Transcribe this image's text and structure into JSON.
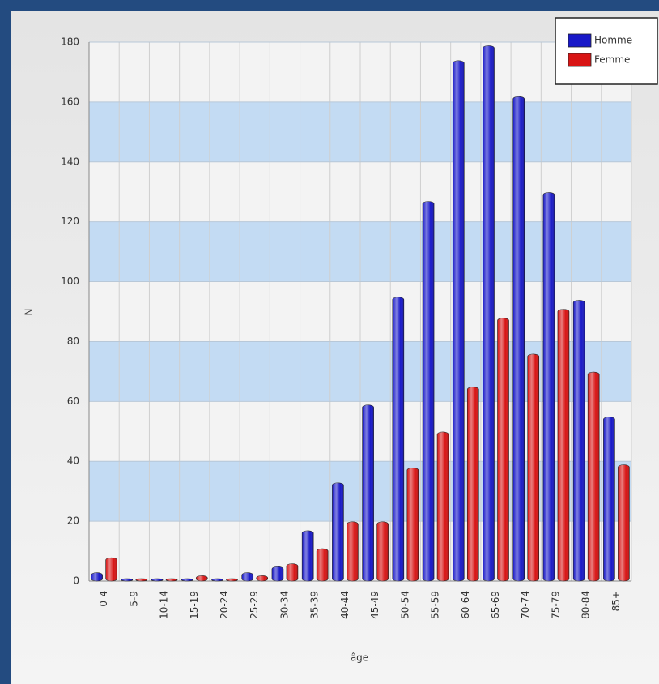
{
  "chart_data": {
    "type": "bar",
    "xlabel": "âge",
    "ylabel": "N",
    "categories": [
      "0-4",
      "5-9",
      "10-14",
      "15-19",
      "20-24",
      "25-29",
      "30-34",
      "35-39",
      "40-44",
      "45-49",
      "50-54",
      "55-59",
      "60-64",
      "65-69",
      "70-74",
      "75-79",
      "80-84",
      "85+"
    ],
    "series": [
      {
        "name": "Homme",
        "color": "#1818c8",
        "values": [
          2,
          0,
          0,
          0,
          0,
          2,
          4,
          16,
          32,
          58,
          94,
          126,
          173,
          178,
          161,
          129,
          93,
          54
        ]
      },
      {
        "name": "Femme",
        "color": "#d81414",
        "values": [
          7,
          0,
          0,
          1,
          0,
          1,
          5,
          10,
          19,
          19,
          37,
          49,
          64,
          87,
          75,
          90,
          69,
          38
        ]
      }
    ],
    "ylim": [
      0,
      180
    ],
    "yticks": [
      0,
      20,
      40,
      60,
      80,
      100,
      120,
      140,
      160,
      180
    ],
    "grid": true,
    "legend": "top-right"
  }
}
